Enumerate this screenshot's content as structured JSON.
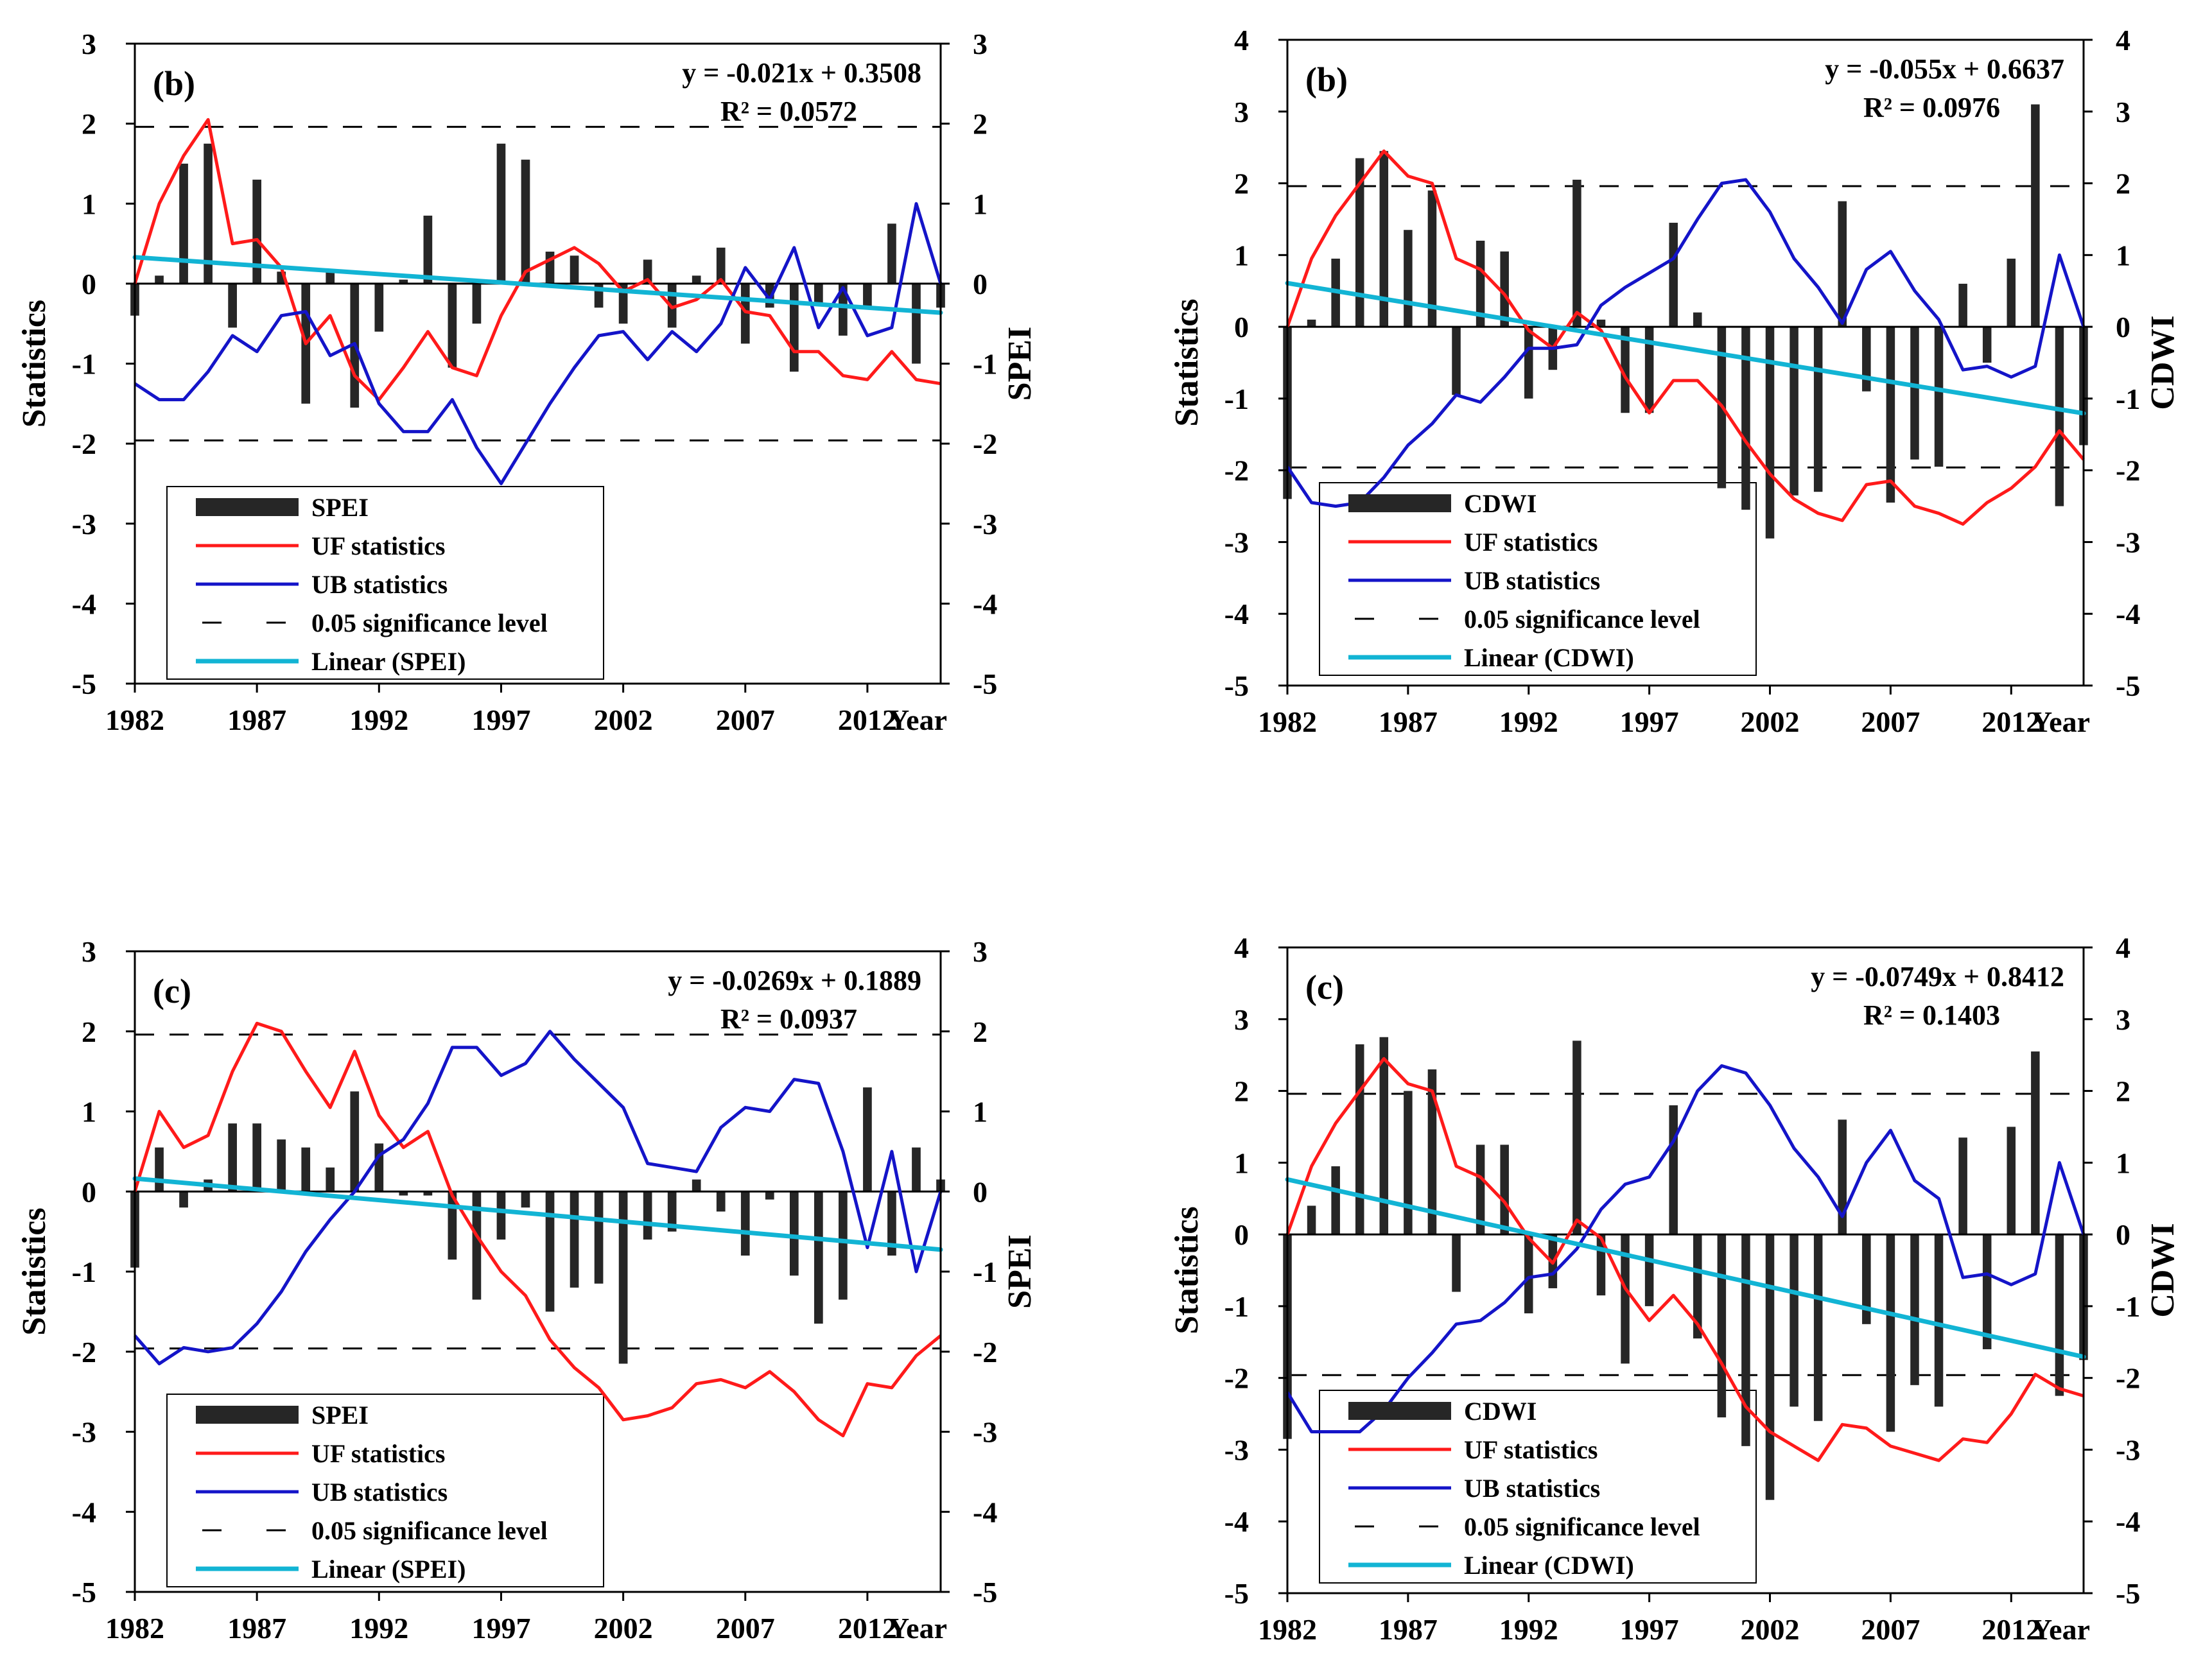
{
  "colors": {
    "bars": "#262626",
    "uf": "#ff1a1a",
    "ub": "#1414c8",
    "linear": "#12b4d4",
    "significance": "#000000"
  },
  "chart_data": [
    {
      "type": "bar+line",
      "panel_label": "(b)",
      "index": "SPEI",
      "ylabel_left": "Statistics",
      "ylabel_right": "SPEI",
      "x_axis_end_label": "Year",
      "equation": "y = -0.021x + 0.3508",
      "r_squared": "R² = 0.0572",
      "xticks": [
        "1982",
        "1987",
        "1992",
        "1997",
        "2002",
        "2007",
        "2012"
      ],
      "yticks_left": [
        "3",
        "2",
        "1",
        "0",
        "-1",
        "-2",
        "-3",
        "-4",
        "-5"
      ],
      "yticks_right": [
        "3",
        "2",
        "1",
        "0",
        "-1",
        "-2",
        "-3",
        "-4",
        "-5"
      ],
      "ylim_left": [
        -5,
        3
      ],
      "ylim_right": [
        -5,
        3
      ],
      "significance_level": 1.96,
      "linear_trend": {
        "slope": -0.021,
        "intercept": 0.3508
      },
      "legend": [
        "SPEI",
        "UF statistics",
        "UB statistics",
        "0.05 significance level",
        "Linear (SPEI)"
      ],
      "years": [
        1982,
        1983,
        1984,
        1985,
        1986,
        1987,
        1988,
        1989,
        1990,
        1991,
        1992,
        1993,
        1994,
        1995,
        1996,
        1997,
        1998,
        1999,
        2000,
        2001,
        2002,
        2003,
        2004,
        2005,
        2006,
        2007,
        2008,
        2009,
        2010,
        2011,
        2012,
        2013,
        2014,
        2015
      ],
      "bars": [
        -0.4,
        0.1,
        1.5,
        1.75,
        -0.55,
        1.3,
        0.15,
        -1.5,
        0.15,
        -1.55,
        -0.6,
        0.05,
        0.85,
        -1.05,
        -0.5,
        1.75,
        1.55,
        0.4,
        0.35,
        -0.3,
        -0.5,
        0.3,
        -0.55,
        0.1,
        0.45,
        -0.75,
        -0.3,
        -1.1,
        -0.25,
        -0.65,
        -0.3,
        0.75,
        -1.0,
        -0.3
      ],
      "uf": [
        0,
        1.0,
        1.6,
        2.05,
        0.5,
        0.55,
        0.2,
        -0.75,
        -0.4,
        -1.15,
        -1.45,
        -1.05,
        -0.6,
        -1.05,
        -1.15,
        -0.4,
        0.15,
        0.3,
        0.45,
        0.25,
        -0.1,
        0.05,
        -0.3,
        -0.2,
        0.05,
        -0.35,
        -0.4,
        -0.85,
        -0.85,
        -1.15,
        -1.2,
        -0.85,
        -1.2,
        -1.25
      ],
      "ub": [
        -1.25,
        -1.45,
        -1.45,
        -1.1,
        -0.65,
        -0.85,
        -0.4,
        -0.35,
        -0.9,
        -0.75,
        -1.5,
        -1.85,
        -1.85,
        -1.45,
        -2.05,
        -2.5,
        -2.0,
        -1.5,
        -1.05,
        -0.65,
        -0.6,
        -0.95,
        -0.6,
        -0.85,
        -0.5,
        0.2,
        -0.2,
        0.45,
        -0.55,
        -0.05,
        -0.65,
        -0.55,
        1.0,
        0.0
      ]
    },
    {
      "type": "bar+line",
      "panel_label": "(b)",
      "index": "CDWI",
      "ylabel_left": "Statistics",
      "ylabel_right": "CDWI",
      "x_axis_end_label": "Year",
      "equation": "y = -0.055x + 0.6637",
      "r_squared": "R² = 0.0976",
      "xticks": [
        "1982",
        "1987",
        "1992",
        "1997",
        "2002",
        "2007",
        "2012"
      ],
      "yticks_left": [
        "4",
        "3",
        "2",
        "1",
        "0",
        "-1",
        "-2",
        "-3",
        "-4",
        "-5"
      ],
      "yticks_right": [
        "4",
        "3",
        "2",
        "1",
        "0",
        "-1",
        "-2",
        "-3",
        "-4",
        "-5"
      ],
      "ylim_left": [
        -5,
        4
      ],
      "ylim_right": [
        -5,
        4
      ],
      "significance_level": 1.96,
      "linear_trend": {
        "slope": -0.055,
        "intercept": 0.6637
      },
      "legend": [
        "CDWI",
        "UF statistics",
        "UB statistics",
        "0.05 significance level",
        "Linear  (CDWI)"
      ],
      "years": [
        1982,
        1983,
        1984,
        1985,
        1986,
        1987,
        1988,
        1989,
        1990,
        1991,
        1992,
        1993,
        1994,
        1995,
        1996,
        1997,
        1998,
        1999,
        2000,
        2001,
        2002,
        2003,
        2004,
        2005,
        2006,
        2007,
        2008,
        2009,
        2010,
        2011,
        2012,
        2013,
        2014,
        2015
      ],
      "bars": [
        -2.4,
        0.1,
        0.95,
        2.35,
        2.45,
        1.35,
        1.9,
        -0.95,
        1.2,
        1.05,
        -1.0,
        -0.6,
        2.05,
        0.1,
        -1.2,
        -1.2,
        1.45,
        0.2,
        -2.25,
        -2.55,
        -2.95,
        -2.35,
        -2.3,
        1.75,
        -0.9,
        -2.45,
        -1.85,
        -1.95,
        0.6,
        -0.5,
        0.95,
        3.1,
        -2.5,
        -1.65
      ],
      "uf": [
        0,
        0.95,
        1.55,
        2.0,
        2.45,
        2.1,
        2.0,
        0.95,
        0.8,
        0.45,
        -0.05,
        -0.3,
        0.2,
        -0.05,
        -0.7,
        -1.2,
        -0.75,
        -0.75,
        -1.1,
        -1.6,
        -2.05,
        -2.4,
        -2.6,
        -2.7,
        -2.2,
        -2.15,
        -2.5,
        -2.6,
        -2.75,
        -2.45,
        -2.25,
        -1.95,
        -1.45,
        -1.85
      ],
      "ub": [
        -1.95,
        -2.45,
        -2.5,
        -2.45,
        -2.1,
        -1.65,
        -1.35,
        -0.95,
        -1.05,
        -0.7,
        -0.3,
        -0.3,
        -0.25,
        0.3,
        0.55,
        0.75,
        0.95,
        1.5,
        2.0,
        2.05,
        1.6,
        0.95,
        0.55,
        0.05,
        0.8,
        1.05,
        0.5,
        0.1,
        -0.6,
        -0.55,
        -0.7,
        -0.55,
        1.0,
        0.0
      ]
    },
    {
      "type": "bar+line",
      "panel_label": "(c)",
      "index": "SPEI",
      "ylabel_left": "Statistics",
      "ylabel_right": "SPEI",
      "x_axis_end_label": "Year",
      "equation": "y = -0.0269x + 0.1889",
      "r_squared": "R² = 0.0937",
      "xticks": [
        "1982",
        "1987",
        "1992",
        "1997",
        "2002",
        "2007",
        "2012"
      ],
      "yticks_left": [
        "3",
        "2",
        "1",
        "0",
        "-1",
        "-2",
        "-3",
        "-4",
        "-5"
      ],
      "yticks_right": [
        "3",
        "2",
        "1",
        "0",
        "-1",
        "-2",
        "-3",
        "-4",
        "-5"
      ],
      "ylim_left": [
        -5,
        3
      ],
      "ylim_right": [
        -5,
        3
      ],
      "significance_level": 1.96,
      "linear_trend": {
        "slope": -0.0269,
        "intercept": 0.1889
      },
      "legend": [
        "SPEI",
        "UF statistics",
        "UB statistics",
        "0.05 significance level",
        "Linear  (SPEI)"
      ],
      "years": [
        1982,
        1983,
        1984,
        1985,
        1986,
        1987,
        1988,
        1989,
        1990,
        1991,
        1992,
        1993,
        1994,
        1995,
        1996,
        1997,
        1998,
        1999,
        2000,
        2001,
        2002,
        2003,
        2004,
        2005,
        2006,
        2007,
        2008,
        2009,
        2010,
        2011,
        2012,
        2013,
        2014,
        2015
      ],
      "bars": [
        -0.95,
        0.55,
        -0.2,
        0.15,
        0.85,
        0.85,
        0.65,
        0.55,
        0.3,
        1.25,
        0.6,
        -0.05,
        -0.05,
        -0.85,
        -1.35,
        -0.6,
        -0.2,
        -1.5,
        -1.2,
        -1.15,
        -2.15,
        -0.6,
        -0.5,
        0.15,
        -0.25,
        -0.8,
        -0.1,
        -1.05,
        -1.65,
        -1.35,
        1.3,
        -0.8,
        0.55,
        0.15
      ],
      "uf": [
        0,
        1.0,
        0.55,
        0.7,
        1.5,
        2.1,
        2.0,
        1.5,
        1.05,
        1.75,
        0.95,
        0.55,
        0.75,
        -0.05,
        -0.55,
        -1.0,
        -1.3,
        -1.85,
        -2.2,
        -2.45,
        -2.85,
        -2.8,
        -2.7,
        -2.4,
        -2.35,
        -2.45,
        -2.25,
        -2.5,
        -2.85,
        -3.05,
        -2.4,
        -2.45,
        -2.05,
        -1.8
      ],
      "ub": [
        -1.8,
        -2.15,
        -1.95,
        -2.0,
        -1.95,
        -1.65,
        -1.25,
        -0.75,
        -0.35,
        0.0,
        0.45,
        0.65,
        1.1,
        1.8,
        1.8,
        1.45,
        1.6,
        2.0,
        1.65,
        1.35,
        1.05,
        0.35,
        0.3,
        0.25,
        0.8,
        1.05,
        1.0,
        1.4,
        1.35,
        0.5,
        -0.7,
        0.5,
        -1.0,
        0.0
      ]
    },
    {
      "type": "bar+line",
      "panel_label": "(c)",
      "index": "CDWI",
      "ylabel_left": "Statistics",
      "ylabel_right": "CDWI",
      "x_axis_end_label": "Year",
      "equation": "y = -0.0749x + 0.8412",
      "r_squared": "R² = 0.1403",
      "xticks": [
        "1982",
        "1987",
        "1992",
        "1997",
        "2002",
        "2007",
        "2012"
      ],
      "yticks_left": [
        "4",
        "3",
        "2",
        "1",
        "0",
        "-1",
        "-2",
        "-3",
        "-4",
        "-5"
      ],
      "yticks_right": [
        "4",
        "3",
        "2",
        "1",
        "0",
        "-1",
        "-2",
        "-3",
        "-4",
        "-5"
      ],
      "ylim_left": [
        -5,
        4
      ],
      "ylim_right": [
        -5,
        4
      ],
      "significance_level": 1.96,
      "linear_trend": {
        "slope": -0.0749,
        "intercept": 0.8412
      },
      "legend": [
        "CDWI",
        "UF statistics",
        "UB statistics",
        "0.05 significance level",
        "Linear (CDWI)"
      ],
      "years": [
        1982,
        1983,
        1984,
        1985,
        1986,
        1987,
        1988,
        1989,
        1990,
        1991,
        1992,
        1993,
        1994,
        1995,
        1996,
        1997,
        1998,
        1999,
        2000,
        2001,
        2002,
        2003,
        2004,
        2005,
        2006,
        2007,
        2008,
        2009,
        2010,
        2011,
        2012,
        2013,
        2014,
        2015
      ],
      "bars": [
        -2.85,
        0.4,
        0.95,
        2.65,
        2.75,
        2.0,
        2.3,
        -0.8,
        1.25,
        1.25,
        -1.1,
        -0.75,
        2.7,
        -0.85,
        -1.8,
        -1.0,
        1.8,
        -1.45,
        -2.55,
        -2.95,
        -3.7,
        -2.4,
        -2.6,
        1.6,
        -1.25,
        -2.75,
        -2.1,
        -2.4,
        1.35,
        -1.6,
        1.5,
        2.55,
        -2.25,
        -1.75
      ],
      "uf": [
        0,
        0.95,
        1.55,
        2.0,
        2.45,
        2.1,
        2.0,
        0.95,
        0.8,
        0.45,
        -0.05,
        -0.4,
        0.2,
        -0.05,
        -0.75,
        -1.2,
        -0.85,
        -1.25,
        -1.8,
        -2.4,
        -2.75,
        -2.95,
        -3.15,
        -2.65,
        -2.7,
        -2.95,
        -3.05,
        -3.15,
        -2.85,
        -2.9,
        -2.5,
        -1.95,
        -2.15,
        -2.25
      ],
      "ub": [
        -2.2,
        -2.75,
        -2.75,
        -2.75,
        -2.45,
        -2.0,
        -1.65,
        -1.25,
        -1.2,
        -0.95,
        -0.6,
        -0.55,
        -0.2,
        0.35,
        0.7,
        0.8,
        1.3,
        2.0,
        2.35,
        2.25,
        1.8,
        1.2,
        0.8,
        0.25,
        1.0,
        1.45,
        0.75,
        0.5,
        -0.6,
        -0.55,
        -0.7,
        -0.55,
        1.0,
        0.0
      ]
    }
  ]
}
